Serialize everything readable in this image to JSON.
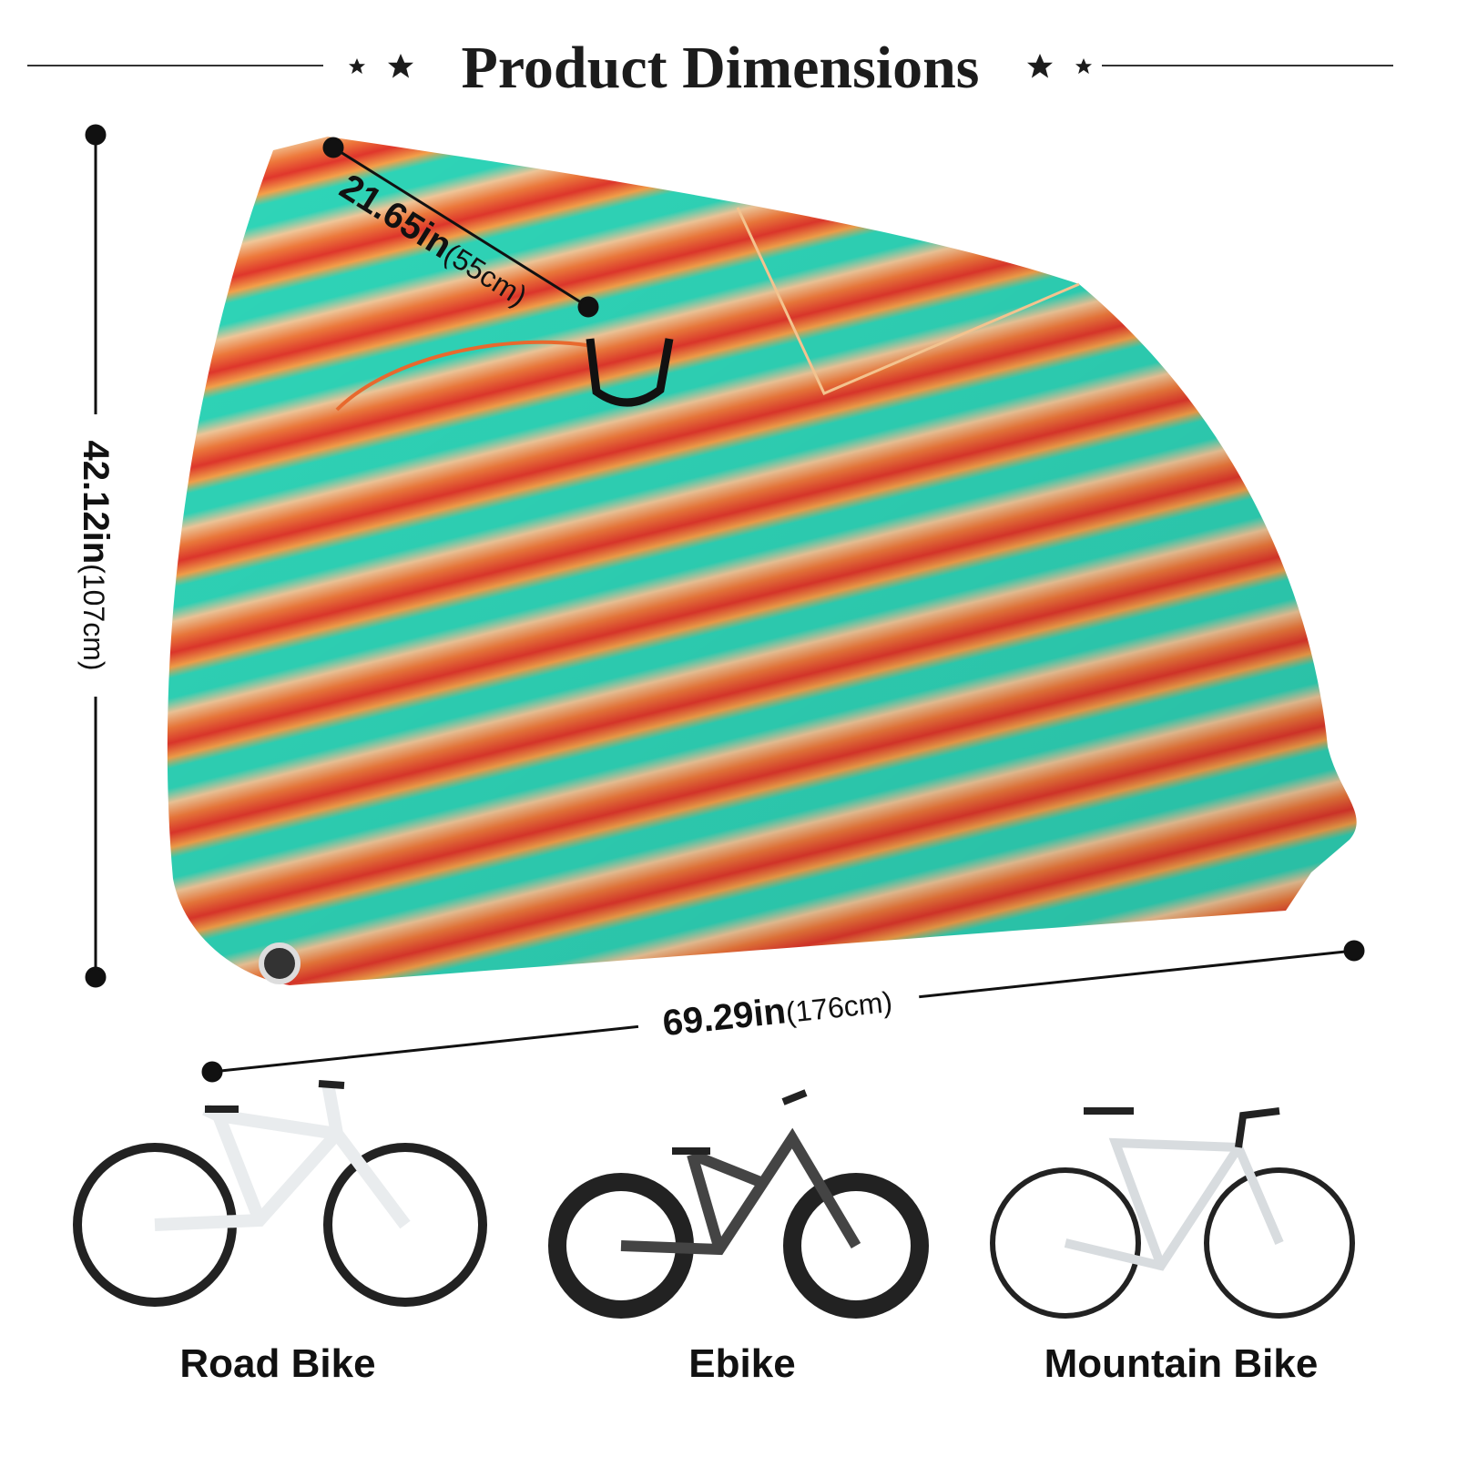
{
  "header": {
    "title": "Product Dimensions"
  },
  "dimensions": [
    {
      "value": "21.65in",
      "metric": "(55cm)"
    },
    {
      "value": "42.12in",
      "metric": "(107cm)"
    },
    {
      "value": "69.29in",
      "metric": "(176cm)"
    }
  ],
  "bikes": [
    {
      "label": "Road Bike"
    },
    {
      "label": "Ebike"
    },
    {
      "label": "Mountain Bike"
    }
  ]
}
